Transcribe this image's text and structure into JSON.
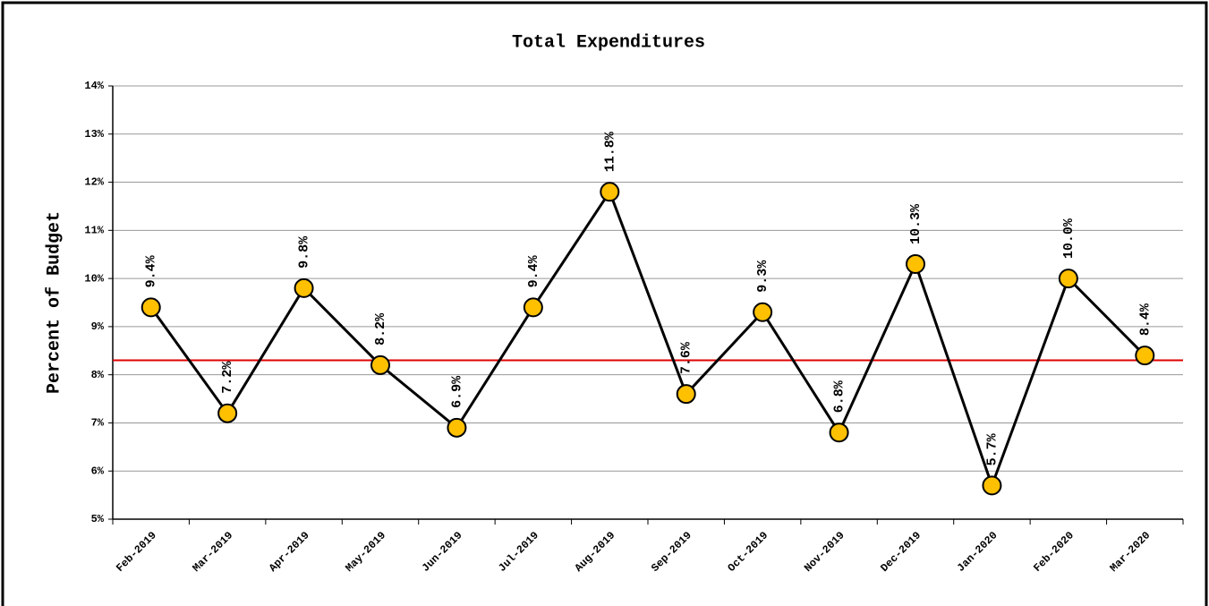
{
  "chart_data": {
    "type": "line",
    "title": "Total Expenditures",
    "y_label": "Percent of Budget",
    "categories": [
      "Feb-2019",
      "Mar-2019",
      "Apr-2019",
      "May-2019",
      "Jun-2019",
      "Jul-2019",
      "Aug-2019",
      "Sep-2019",
      "Oct-2019",
      "Nov-2019",
      "Dec-2019",
      "Jan-2020",
      "Feb-2020",
      "Mar-2020"
    ],
    "values": [
      9.4,
      7.2,
      9.8,
      8.2,
      6.9,
      9.4,
      11.8,
      7.6,
      9.3,
      6.8,
      10.3,
      5.7,
      10.0,
      8.4
    ],
    "value_labels": [
      "9.4%",
      "7.2%",
      "9.8%",
      "8.2%",
      "6.9%",
      "9.4%",
      "11.8%",
      "7.6%",
      "9.3%",
      "6.8%",
      "10.3%",
      "5.7%",
      "10.0%",
      "8.4%"
    ],
    "color": "#000000",
    "marker_color": "#ffc000",
    "reference_line": 8.3,
    "reference_color": "#e00000",
    "ylim": [
      5,
      14
    ],
    "yticks": [
      {
        "value": 5,
        "label": "5%"
      },
      {
        "value": 6,
        "label": "6%"
      },
      {
        "value": 7,
        "label": "7%"
      },
      {
        "value": 8,
        "label": "8%"
      },
      {
        "value": 9,
        "label": "9%"
      },
      {
        "value": 10,
        "label": "10%"
      },
      {
        "value": 11,
        "label": "11%"
      },
      {
        "value": 12,
        "label": "12%"
      },
      {
        "value": 13,
        "label": "13%"
      },
      {
        "value": 14,
        "label": "14%"
      }
    ],
    "grid": true
  }
}
